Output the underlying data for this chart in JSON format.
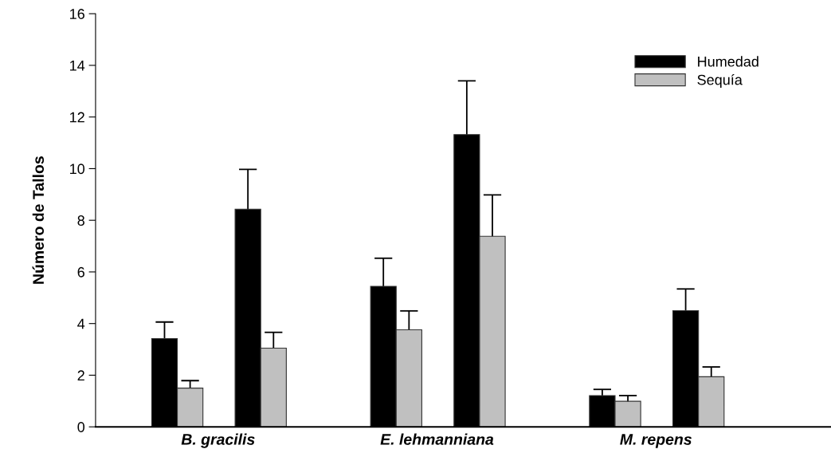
{
  "chart_data": {
    "type": "bar",
    "ylabel": "Número de Tallos",
    "categories": [
      "B. gracilis",
      "E. lehmanniana",
      "M. repens"
    ],
    "series": [
      {
        "name": "Humedad",
        "color": "#000000",
        "values": [
          3.42,
          5.44,
          1.21
        ],
        "errors": [
          0.64,
          1.09,
          0.24
        ]
      },
      {
        "name": "Sequía",
        "color": "#c0c0c0",
        "values": [
          1.5,
          3.76,
          0.99
        ],
        "errors": [
          0.29,
          0.73,
          0.22
        ]
      },
      {
        "color": "#000000",
        "values": [
          8.43,
          11.32,
          4.5
        ],
        "errors": [
          1.54,
          2.08,
          0.84
        ]
      },
      {
        "color": "#c0c0c0",
        "values": [
          3.05,
          7.38,
          1.94
        ],
        "errors": [
          0.61,
          1.6,
          0.38
        ]
      }
    ],
    "ylim": [
      0,
      16
    ],
    "yticks": [
      0,
      2,
      4,
      6,
      8,
      10,
      12,
      14,
      16
    ],
    "grid": false,
    "legend": "top right"
  }
}
